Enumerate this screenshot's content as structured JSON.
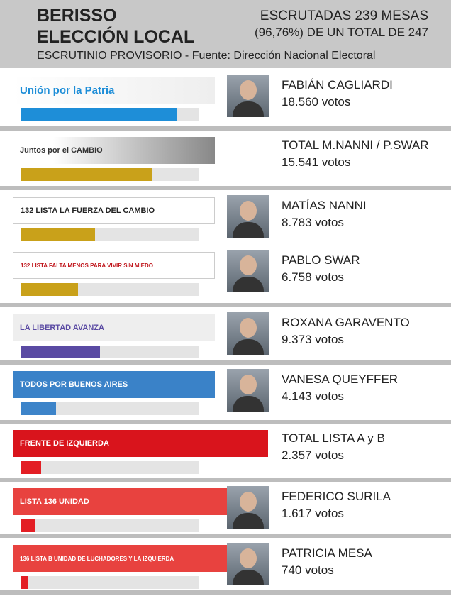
{
  "header": {
    "title_line1": "BERISSO",
    "title_line2": "ELECCIÓN LOCAL",
    "count_line1": "ESCRUTADAS 239 MESAS",
    "count_line2": "(96,76%) DE UN TOTAL DE 247",
    "source": "ESCRUTINIO PROVISORIO - Fuente: Dirección Nacional Electoral"
  },
  "rows": [
    {
      "logo": "Unión por la Patria",
      "name": "FABIÁN CAGLIARDI",
      "votes": 18560,
      "votes_label": "18.560 votos",
      "color": "#1e8ed8"
    },
    {
      "logo": "Juntos por el CAMBIO",
      "name": "TOTAL M.NANNI / P.SWAR",
      "votes": 15541,
      "votes_label": "15.541 votos",
      "color": "#c9a11a"
    },
    {
      "logo": "132 LISTA LA FUERZA DEL CAMBIO",
      "name": "MATÍAS NANNI",
      "votes": 8783,
      "votes_label": "8.783 votos",
      "color": "#c9a11a"
    },
    {
      "logo": "132 LISTA FALTA MENOS PARA VIVIR SIN MIEDO",
      "name": "PABLO SWAR",
      "votes": 6758,
      "votes_label": "6.758 votos",
      "color": "#c9a11a"
    },
    {
      "logo": "LA LIBERTAD AVANZA",
      "name": "ROXANA GARAVENTO",
      "votes": 9373,
      "votes_label": "9.373 votos",
      "color": "#5a4aa3"
    },
    {
      "logo": "TODOS POR BUENOS AIRES",
      "name": "VANESA QUEYFFER",
      "votes": 4143,
      "votes_label": "4.143 votos",
      "color": "#3d84c9"
    },
    {
      "logo": "FRENTE DE IZQUIERDA",
      "name": "TOTAL LISTA A y B",
      "votes": 2357,
      "votes_label": "2.357 votos",
      "color": "#e31e24"
    },
    {
      "logo": "LISTA 136 UNIDAD",
      "name": "FEDERICO SURILA",
      "votes": 1617,
      "votes_label": "1.617 votos",
      "color": "#e31e24"
    },
    {
      "logo": "136 LISTA B UNIDAD DE LUCHADORES Y LA IZQUIERDA",
      "name": "PATRICIA MESA",
      "votes": 740,
      "votes_label": "740 votos",
      "color": "#e31e24"
    }
  ]
}
